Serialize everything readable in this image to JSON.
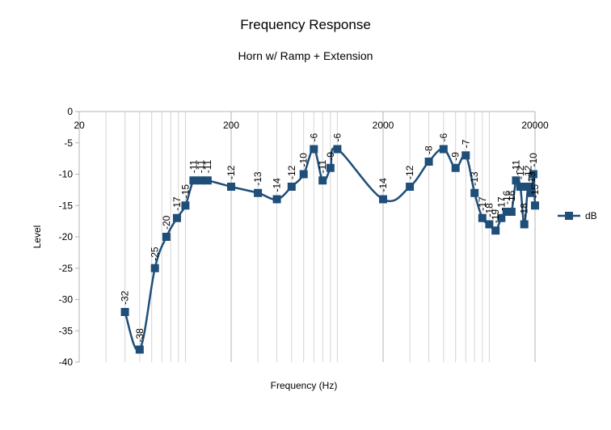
{
  "chart_data": {
    "type": "line",
    "title": "Frequency Response",
    "subtitle": "Horn w/ Ramp + Extension",
    "xlabel": "Frequency (Hz)",
    "ylabel": "Level",
    "x_scale": "log",
    "xlim": [
      20,
      20000
    ],
    "ylim": [
      -40,
      0
    ],
    "x_ticks": [
      "20",
      "200",
      "2000",
      "20000"
    ],
    "y_ticks": [
      "0",
      "-5",
      "-10",
      "-15",
      "-20",
      "-25",
      "-30",
      "-35",
      "-40"
    ],
    "grid": "vertical log gridlines",
    "legend": "right",
    "color": "#1f4e79",
    "series": [
      {
        "name": "dB",
        "x": [
          40,
          50,
          63,
          75,
          88,
          100,
          113,
          126,
          140,
          200,
          300,
          400,
          500,
          600,
          700,
          800,
          900,
          1000,
          2000,
          3000,
          4000,
          5000,
          6000,
          7000,
          8000,
          9000,
          10000,
          11000,
          12000,
          13000,
          14000,
          15000,
          16000,
          17000,
          18000,
          19000,
          19500,
          20000
        ],
        "y": [
          -32,
          -38,
          -25,
          -20,
          -17,
          -15,
          -11,
          -11,
          -11,
          -12,
          -13,
          -14,
          -12,
          -10,
          -6,
          -11,
          -9,
          -6,
          -14,
          -12,
          -8,
          -6,
          -9,
          -7,
          -13,
          -17,
          -18,
          -19,
          -17,
          -16,
          -16,
          -11,
          -12,
          -18,
          -12,
          -13,
          -10,
          -15
        ]
      }
    ]
  }
}
